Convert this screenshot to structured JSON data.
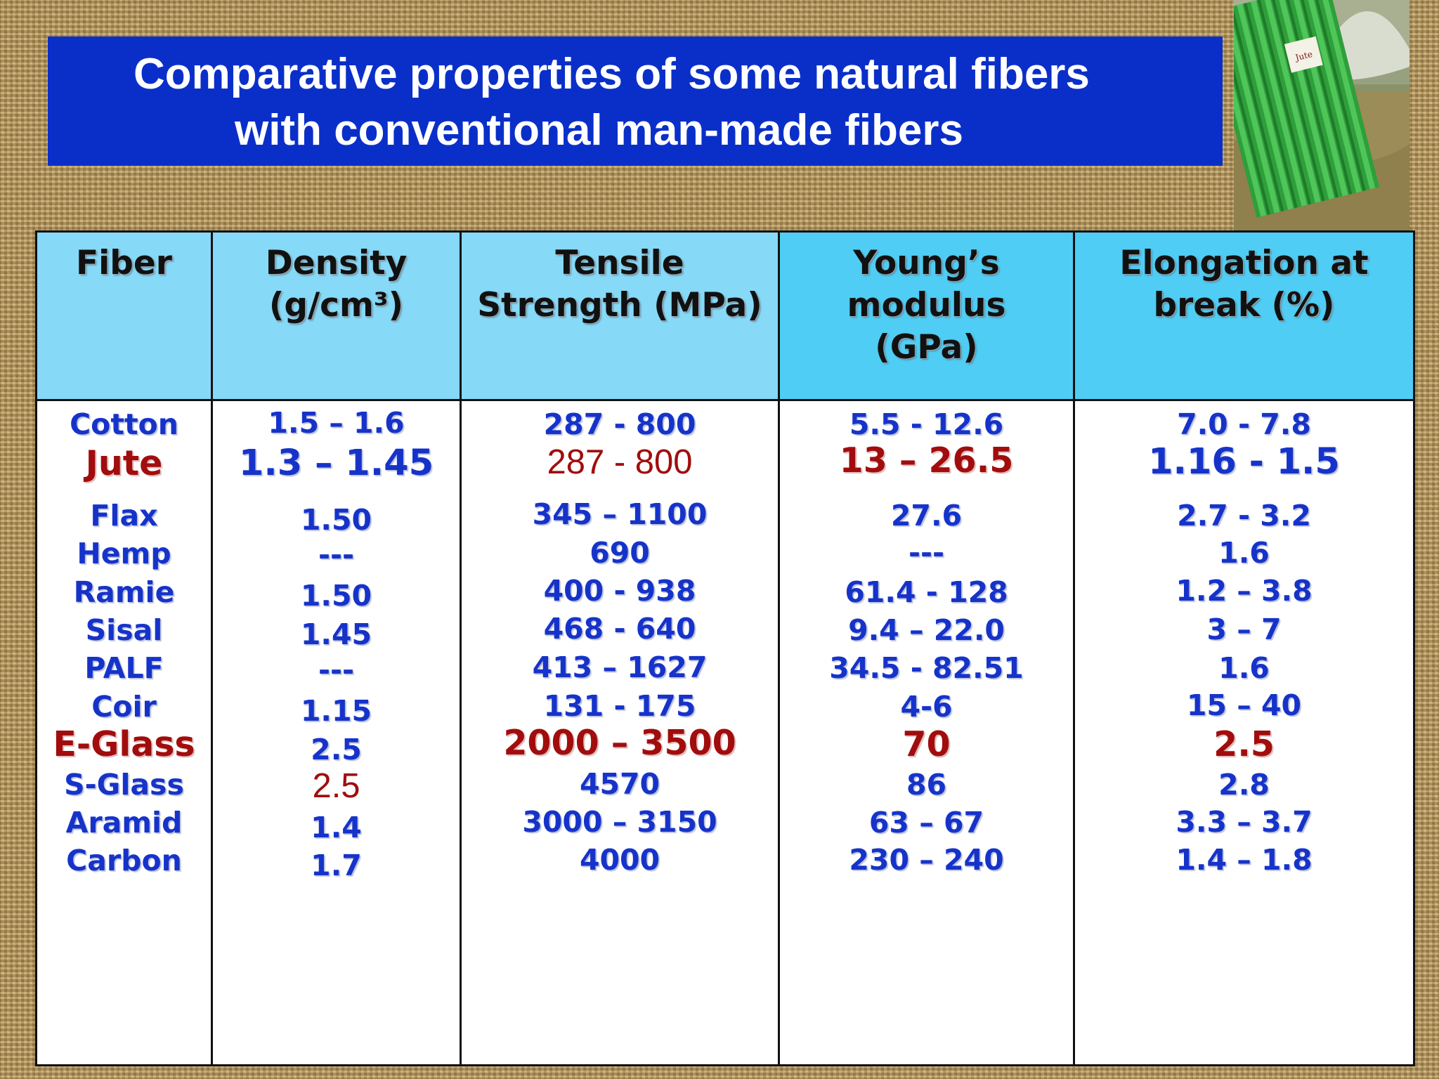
{
  "title": {
    "line1": "Comparative properties of some natural fibers",
    "line2": "with conventional man-made fibers"
  },
  "photo": {
    "label": "Jute"
  },
  "table": {
    "headers": {
      "fiber": "Fiber",
      "density": "Density\n(g/cm³)",
      "tensile": "Tensile\nStrength (MPa)",
      "young": "Young’s\nmodulus\n(GPa)",
      "elongation": "Elongation at\nbreak (%)"
    },
    "rows": [
      {
        "fiber": "Cotton",
        "density": "1.5 – 1.6",
        "tensile": "287 - 800",
        "young": "5.5 - 12.6",
        "elongation": "7.0 - 7.8"
      },
      {
        "fiber": "Jute",
        "density": "1.3 – 1.45",
        "tensile": "287 - 800",
        "young": "13 – 26.5",
        "elongation": "1.16 - 1.5"
      },
      {
        "fiber": "Flax",
        "density": "1.50",
        "tensile": "345 – 1100",
        "young": "27.6",
        "elongation": "2.7 - 3.2"
      },
      {
        "fiber": "Hemp",
        "density": "---",
        "tensile": "690",
        "young": "---",
        "elongation": "1.6"
      },
      {
        "fiber": "Ramie",
        "density": "1.50",
        "tensile": "400 - 938",
        "young": "61.4 - 128",
        "elongation": "1.2 – 3.8"
      },
      {
        "fiber": "Sisal",
        "density": "1.45",
        "tensile": "468 - 640",
        "young": "9.4 – 22.0",
        "elongation": "3 – 7"
      },
      {
        "fiber": "PALF",
        "density": "---",
        "tensile": "413 – 1627",
        "young": "34.5 - 82.51",
        "elongation": "1.6"
      },
      {
        "fiber": "Coir",
        "density": "1.15",
        "tensile": "131 - 175",
        "young": "4-6",
        "elongation": "15 – 40"
      },
      {
        "fiber": "E-Glass",
        "density": "2.5",
        "tensile": "2000 – 3500",
        "young": "70",
        "elongation": "2.5"
      },
      {
        "fiber": "S-Glass",
        "density": "2.5",
        "tensile": "4570",
        "young": "86",
        "elongation": "2.8"
      },
      {
        "fiber": "Aramid",
        "density": "1.4",
        "tensile": "3000 – 3150",
        "young": "63 – 67",
        "elongation": "3.3 – 3.7"
      },
      {
        "fiber": "Carbon",
        "density": "1.7",
        "tensile": "4000",
        "young": "230 – 240",
        "elongation": "1.4 – 1.8"
      }
    ]
  },
  "colors": {
    "banner": "#0a2fc9",
    "header_light": "#86d9f7",
    "header_deep": "#4fcdf4",
    "value_blue": "#1633c9",
    "value_red": "#a10d0d"
  }
}
